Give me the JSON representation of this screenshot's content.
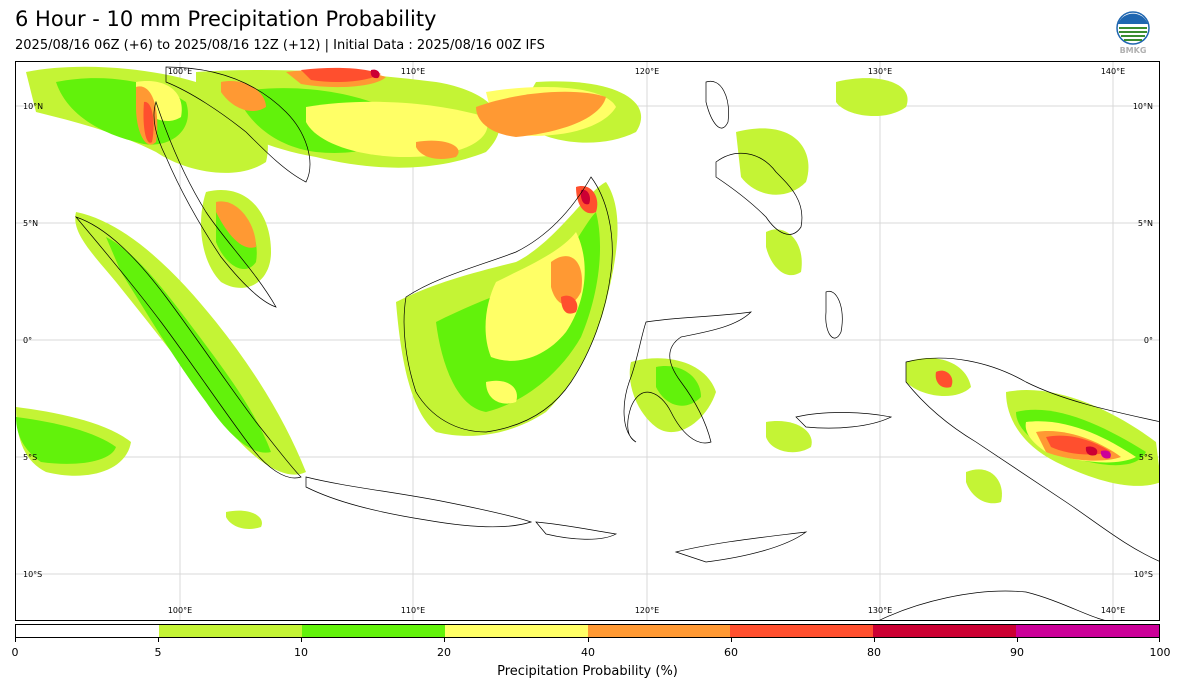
{
  "header": {
    "title": "6 Hour - 10 mm Precipitation Probability",
    "subtitle": "2025/08/16 06Z (+6) to 2025/08/16 12Z (+12) | Initial Data : 2025/08/16 00Z IFS",
    "logo_text": "BMKG"
  },
  "map": {
    "lon_labels": [
      "100°E",
      "110°E",
      "120°E",
      "130°E",
      "140°E"
    ],
    "lat_labels": [
      "10°N",
      "5°N",
      "0°",
      "5°S",
      "10°S"
    ],
    "colors": {
      "coast": "#000000",
      "grid": "#d8d8d8"
    }
  },
  "colorbar": {
    "title": "Precipitation Probability (%)",
    "tick_labels": [
      "0",
      "5",
      "10",
      "20",
      "40",
      "60",
      "80",
      "90",
      "100"
    ],
    "colors": [
      "#ffffff",
      "#c4f435",
      "#62f20b",
      "#ffff66",
      "#ff9933",
      "#ff4f2e",
      "#cc0033",
      "#cc0099"
    ]
  }
}
